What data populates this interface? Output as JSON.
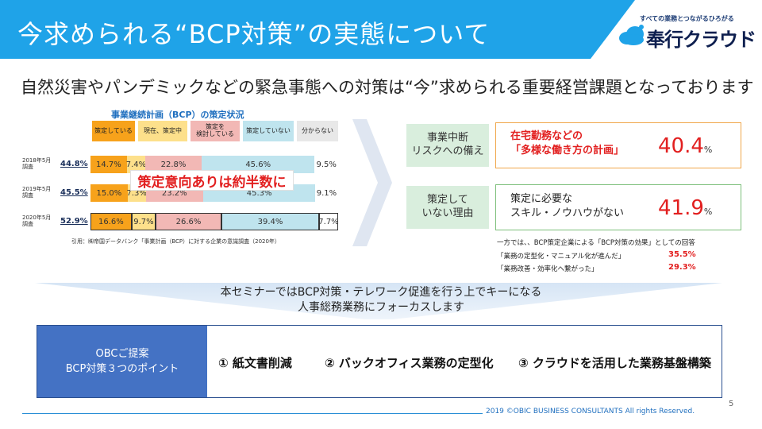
{
  "header": {
    "title": "今求められる“BCP対策”の実態について",
    "logo_tagline": "すべての業務とつながるひろがる",
    "logo_text": "奉行クラウド"
  },
  "headline": "自然災害やパンデミックなどの緊急事態への対策は“今”求められる重要経営課題となっております",
  "chart": {
    "title": "事業継続計画（BCP）の策定状況",
    "legend": [
      "策定している",
      "現在、策定中",
      "策定を\n検討している",
      "策定していない",
      "分からない"
    ],
    "callout": "策定意向ありは約半数に",
    "citation": "引用：㈱帝国データバンク「事業計画（BCP）に対する企業の意識調査（2020年）",
    "colors": {
      "a": "#f7a21b",
      "b": "#fde08b",
      "c": "#f2b8b5",
      "d": "#bfe4ee",
      "e": "#ffffff"
    }
  },
  "chart_data": {
    "type": "bar",
    "title": "事業継続計画（BCP）の策定状況",
    "categories": [
      "2018年5月調査",
      "2019年5月調査",
      "2020年5月調査"
    ],
    "totals": [
      "44.8%",
      "45.5%",
      "52.9%"
    ],
    "series": [
      {
        "name": "策定している",
        "values": [
          14.7,
          15.0,
          16.6
        ]
      },
      {
        "name": "現在、策定中",
        "values": [
          7.4,
          7.3,
          9.7
        ]
      },
      {
        "name": "策定を検討している",
        "values": [
          22.8,
          23.2,
          26.6
        ]
      },
      {
        "name": "策定していない",
        "values": [
          45.6,
          45.3,
          39.4
        ]
      },
      {
        "name": "分からない",
        "values": [
          9.5,
          9.1,
          7.7
        ]
      }
    ],
    "labels": [
      [
        "14.7%",
        "7.4%",
        "22.8%",
        "45.6%",
        "9.5%"
      ],
      [
        "15.0%",
        "7.3%",
        "23.2%",
        "45.3%",
        "9.1%"
      ],
      [
        "16.6%",
        "9.7%",
        "26.6%",
        "39.4%",
        "7.7%"
      ]
    ]
  },
  "right": {
    "box1_label": "事業中断\nリスクへの備え",
    "box1_text": "在宅勤務などの\n「多様な働き方の計画」",
    "box1_value": "40.4",
    "box2_label": "策定して\nいない理由",
    "box2_text": "策定に必要な\nスキル・ノウハウがない",
    "box2_value": "41.9",
    "pct_sign": "%",
    "note": "一方では、、BCP策定企業による「BCP対策の効果」としての回答",
    "note_items": [
      {
        "label": "「業務の定型化・マニュアル化が進んだ」",
        "value": "35.5%"
      },
      {
        "label": "「業務改善・効率化へ繋がった」",
        "value": "29.3%"
      }
    ]
  },
  "banner": "本セミナーではBCP対策・テレワーク促進を行う上でキーになる\n人事総務業務にフォーカスします",
  "proposal": {
    "label": "OBCご提案\nBCP対策３つのポイント",
    "points": [
      "① 紙文書削減",
      "② バックオフィス業務の定型化",
      "③ クラウドを活用した業務基盤構築"
    ]
  },
  "footer": {
    "copyright": "2019 ©OBIC BUSINESS CONSULTANTS All rights Reserved.",
    "page": "5"
  }
}
